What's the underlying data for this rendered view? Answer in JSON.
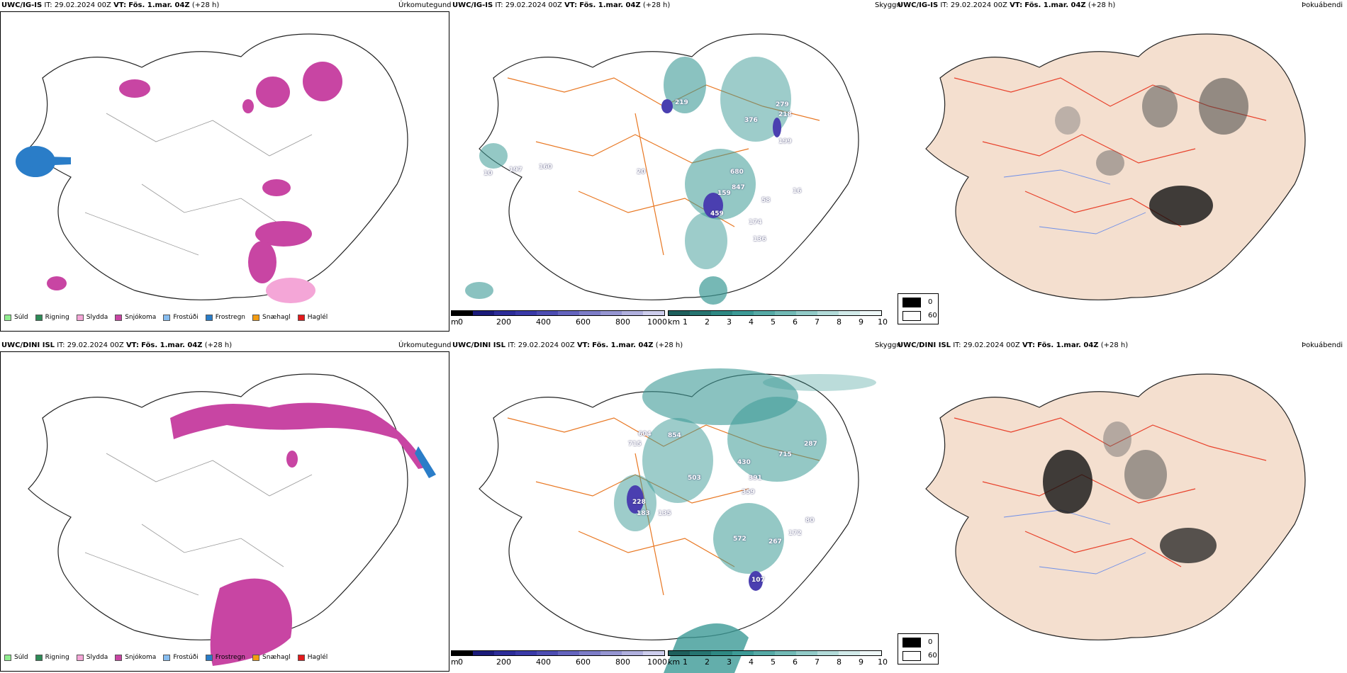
{
  "rows": [
    {
      "model": "UWC/IG-IS",
      "it": "IT: 29.02.2024 00Z",
      "vt_label": "VT:",
      "vt": "Fös. 1.mar. 04Z",
      "lead": "(+28 h)",
      "cloud_labels": [
        "219",
        "279",
        "218",
        "376",
        "199",
        "197",
        "160",
        "10",
        "20",
        "680",
        "847",
        "159",
        "459",
        "58",
        "174",
        "136",
        "16"
      ],
      "precip_legend": [
        "Súld",
        "Rigning",
        "Slydda",
        "Snjókoma",
        "Frostúði",
        "Frostregn",
        "Snæhagl",
        "Haglél"
      ]
    },
    {
      "model": "UWC/DINI ISL",
      "it": "IT: 29.02.2024 00Z",
      "vt_label": "VT:",
      "vt": "Fös. 1.mar. 04Z",
      "lead": "(+28 h)",
      "cloud_labels": [
        "604",
        "715",
        "854",
        "715",
        "430",
        "391",
        "503",
        "359",
        "228",
        "183",
        "572",
        "267",
        "172",
        "80",
        "287",
        "107",
        "135"
      ],
      "precip_legend": [
        "Súld",
        "Rigning",
        "Slydda",
        "Snjókoma",
        "Frostúði",
        "Frostregn",
        "Snæhagl",
        "Haglél"
      ]
    }
  ],
  "titles": {
    "precip": "Úrkomutegund",
    "cloud": "Skyggni",
    "fog": "Þokuábendi"
  },
  "colorbar": {
    "m_unit": "m",
    "m_ticks": [
      "0",
      "200",
      "400",
      "600",
      "800",
      "1000"
    ],
    "km_unit": "km",
    "km_ticks": [
      "1",
      "2",
      "3",
      "4",
      "5",
      "6",
      "7",
      "8",
      "9",
      "10"
    ],
    "fog_ticks": [
      "0",
      "60"
    ]
  },
  "colors": {
    "drizzle": "#90ee90",
    "rain": "#2e8b57",
    "sleet": "#f4a6d7",
    "snow": "#c845a3",
    "freezing_drizzle": "#87bdf0",
    "freezing_rain": "#2a7dc8",
    "snow_grains": "#f39c12",
    "hail": "#e31a1c",
    "roads": "#e87722",
    "cloud_teal": "#3c9a96",
    "cloud_blue": "#4a3fb0",
    "fog_land": "#f4dfcf"
  }
}
